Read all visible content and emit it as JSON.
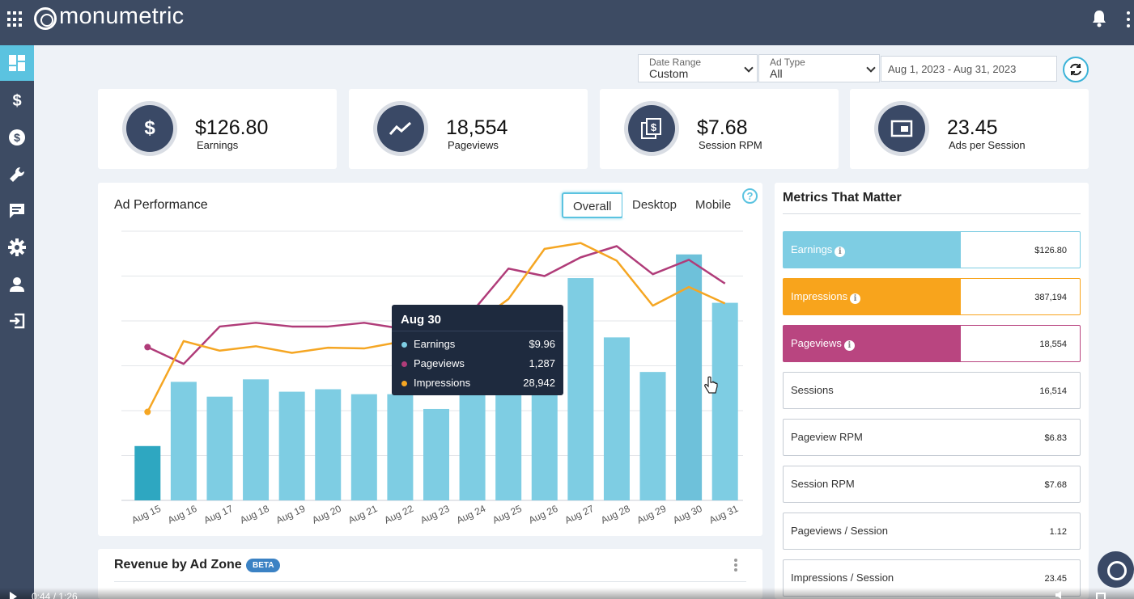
{
  "app": {
    "logo_text": "monumetric"
  },
  "sidebar": {
    "items": [
      {
        "name": "dashboard",
        "icon": "dashboard-icon",
        "active": true
      },
      {
        "name": "earnings",
        "icon": "dollar-icon"
      },
      {
        "name": "payments",
        "icon": "coin-icon"
      },
      {
        "name": "tools",
        "icon": "wrench-icon"
      },
      {
        "name": "messages",
        "icon": "chat-icon"
      },
      {
        "name": "settings",
        "icon": "gear-icon"
      },
      {
        "name": "profile",
        "icon": "user-icon"
      },
      {
        "name": "logout",
        "icon": "logout-icon"
      }
    ]
  },
  "filters": {
    "date_range": {
      "label": "Date Range",
      "value": "Custom"
    },
    "ad_type": {
      "label": "Ad Type",
      "value": "All"
    },
    "dates": "Aug 1, 2023 - Aug 31, 2023"
  },
  "stats": [
    {
      "value": "$126.80",
      "label": "Earnings",
      "icon": "dollar-icon"
    },
    {
      "value": "18,554",
      "label": "Pageviews",
      "icon": "trend-icon"
    },
    {
      "value": "$7.68",
      "label": "Session RPM",
      "icon": "money-stack-icon"
    },
    {
      "value": "23.45",
      "label": "Ads per Session",
      "icon": "ad-window-icon"
    }
  ],
  "ad_performance": {
    "title": "Ad Performance",
    "tabs": [
      "Overall",
      "Desktop",
      "Mobile"
    ],
    "active_tab": "Overall"
  },
  "chart_data": {
    "type": "bar",
    "categories": [
      "Aug 15",
      "Aug 16",
      "Aug 17",
      "Aug 18",
      "Aug 19",
      "Aug 20",
      "Aug 21",
      "Aug 22",
      "Aug 23",
      "Aug 24",
      "Aug 25",
      "Aug 26",
      "Aug 27",
      "Aug 28",
      "Aug 29",
      "Aug 30",
      "Aug 31"
    ],
    "series": [
      {
        "name": "Earnings",
        "kind": "bar",
        "color": "#7ecde3",
        "values": [
          2.2,
          4.8,
          4.2,
          4.9,
          4.4,
          4.5,
          4.3,
          4.3,
          3.7,
          4.6,
          5.1,
          6.4,
          9.0,
          6.6,
          5.2,
          9.96,
          8.0
        ]
      },
      {
        "name": "Pageviews",
        "kind": "line",
        "color": "#b03c79",
        "values": [
          820,
          730,
          930,
          950,
          930,
          930,
          950,
          920,
          890,
          1010,
          1240,
          1200,
          1300,
          1360,
          1210,
          1287,
          1160
        ]
      },
      {
        "name": "Impressions",
        "kind": "line",
        "color": "#f5a623",
        "values": [
          12000,
          21600,
          20300,
          20900,
          20000,
          20700,
          20600,
          21500,
          22200,
          23700,
          27300,
          34100,
          34900,
          32500,
          26400,
          28942,
          26700
        ]
      }
    ],
    "highlighted_index": 0,
    "hover_index": 15,
    "gridlines": 7,
    "tooltip": {
      "title": "Aug 30",
      "rows": [
        {
          "name": "Earnings",
          "value": "$9.96",
          "color": "#7ecde3"
        },
        {
          "name": "Pageviews",
          "value": "1,287",
          "color": "#b03c79"
        },
        {
          "name": "Impressions",
          "value": "28,942",
          "color": "#f5a623"
        }
      ]
    }
  },
  "revenue_by_zone": {
    "title": "Revenue by Ad Zone",
    "badge": "BETA"
  },
  "metrics": {
    "title": "Metrics That Matter",
    "rows": [
      {
        "name": "Earnings",
        "value": "$126.80",
        "fill": "#7ecde3",
        "info": true
      },
      {
        "name": "Impressions",
        "value": "387,194",
        "fill": "#f8a41c",
        "info": true
      },
      {
        "name": "Pageviews",
        "value": "18,554",
        "fill": "#b94580",
        "info": true
      },
      {
        "name": "Sessions",
        "value": "16,514"
      },
      {
        "name": "Pageview RPM",
        "value": "$6.83"
      },
      {
        "name": "Session RPM",
        "value": "$7.68"
      },
      {
        "name": "Pageviews / Session",
        "value": "1.12"
      },
      {
        "name": "Impressions / Session",
        "value": "23.45"
      }
    ]
  },
  "video": {
    "time": "0:44 / 1:26"
  }
}
